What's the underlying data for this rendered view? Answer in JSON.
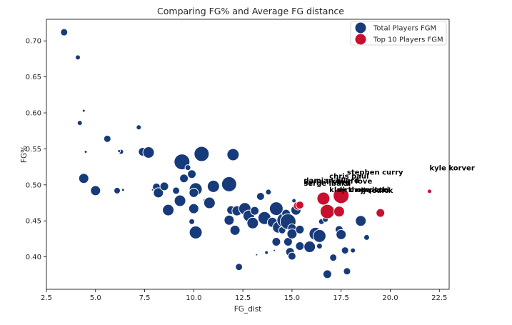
{
  "chart_data": {
    "type": "scatter",
    "title": "Comparing FG% and Average FG distance",
    "xlabel": "FG_dist",
    "ylabel": "FG%",
    "xlim": [
      2.5,
      23.0
    ],
    "ylim": [
      0.355,
      0.73
    ],
    "xticks": [
      2.5,
      5.0,
      7.5,
      10.0,
      12.5,
      15.0,
      17.5,
      20.0,
      22.5
    ],
    "xtick_labels": [
      "2.5",
      "5.0",
      "7.5",
      "10.0",
      "12.5",
      "15.0",
      "17.5",
      "20.0",
      "22.5"
    ],
    "yticks": [
      0.4,
      0.45,
      0.5,
      0.55,
      0.6,
      0.65,
      0.7
    ],
    "ytick_labels": [
      "0.40",
      "0.45",
      "0.50",
      "0.55",
      "0.60",
      "0.65",
      "0.70"
    ],
    "grid": false,
    "legend_position": "top-right",
    "colors": {
      "total": "#173b7a",
      "top": "#c8102e",
      "edge": "#ffffff"
    },
    "series": [
      {
        "name": "Total Players FGM",
        "color": "#173b7a",
        "points": [
          [
            3.4,
            0.712,
            5
          ],
          [
            4.1,
            0.677,
            3.5
          ],
          [
            4.4,
            0.603,
            2
          ],
          [
            4.2,
            0.586,
            3.5
          ],
          [
            4.5,
            0.546,
            2
          ],
          [
            5.6,
            0.564,
            5
          ],
          [
            6.3,
            0.546,
            3.5
          ],
          [
            6.2,
            0.547,
            2
          ],
          [
            7.2,
            0.58,
            3.5
          ],
          [
            7.4,
            0.546,
            6
          ],
          [
            7.7,
            0.545,
            8
          ],
          [
            4.4,
            0.509,
            7
          ],
          [
            5.0,
            0.492,
            7
          ],
          [
            6.1,
            0.492,
            4.5
          ],
          [
            6.4,
            0.493,
            2
          ],
          [
            7.9,
            0.493,
            1.5
          ],
          [
            8.1,
            0.497,
            5.5
          ],
          [
            8.2,
            0.489,
            7
          ],
          [
            8.5,
            0.498,
            6
          ],
          [
            8.7,
            0.465,
            8
          ],
          [
            9.1,
            0.492,
            5
          ],
          [
            9.3,
            0.478,
            8
          ],
          [
            9.4,
            0.532,
            11
          ],
          [
            9.5,
            0.509,
            6
          ],
          [
            9.7,
            0.524,
            4
          ],
          [
            9.9,
            0.515,
            6
          ],
          [
            10.1,
            0.494,
            9
          ],
          [
            10.0,
            0.489,
            6.5
          ],
          [
            10.0,
            0.467,
            7
          ],
          [
            9.9,
            0.449,
            4
          ],
          [
            10.1,
            0.434,
            9
          ],
          [
            10.4,
            0.543,
            10.5
          ],
          [
            10.6,
            0.478,
            3.5
          ],
          [
            10.8,
            0.475,
            8
          ],
          [
            11.0,
            0.498,
            8.5
          ],
          [
            11.8,
            0.501,
            10.5
          ],
          [
            11.9,
            0.465,
            6
          ],
          [
            12.0,
            0.542,
            8.5
          ],
          [
            11.8,
            0.451,
            7
          ],
          [
            12.2,
            0.464,
            7
          ],
          [
            12.1,
            0.437,
            7
          ],
          [
            12.3,
            0.386,
            5
          ],
          [
            12.6,
            0.467,
            8.5
          ],
          [
            12.8,
            0.457,
            8
          ],
          [
            13.0,
            0.447,
            8
          ],
          [
            13.1,
            0.464,
            6
          ],
          [
            13.2,
            0.403,
            1.5
          ],
          [
            13.4,
            0.484,
            5.5
          ],
          [
            13.6,
            0.454,
            9
          ],
          [
            13.7,
            0.406,
            2.5
          ],
          [
            13.8,
            0.49,
            4
          ],
          [
            14.0,
            0.448,
            7
          ],
          [
            14.2,
            0.467,
            9.5
          ],
          [
            14.3,
            0.441,
            8
          ],
          [
            14.2,
            0.421,
            6
          ],
          [
            14.1,
            0.409,
            1.5
          ],
          [
            14.5,
            0.437,
            5
          ],
          [
            14.6,
            0.451,
            10
          ],
          [
            14.7,
            0.46,
            6
          ],
          [
            14.8,
            0.449,
            11
          ],
          [
            14.9,
            0.407,
            6
          ],
          [
            14.8,
            0.421,
            6
          ],
          [
            15.0,
            0.44,
            6
          ],
          [
            15.0,
            0.432,
            7
          ],
          [
            15.0,
            0.401,
            5.5
          ],
          [
            15.1,
            0.478,
            3
          ],
          [
            15.2,
            0.465,
            7
          ],
          [
            15.4,
            0.438,
            6
          ],
          [
            15.4,
            0.415,
            6
          ],
          [
            15.9,
            0.414,
            8
          ],
          [
            16.2,
            0.432,
            9
          ],
          [
            16.4,
            0.429,
            9
          ],
          [
            16.4,
            0.415,
            4
          ],
          [
            16.5,
            0.449,
            4
          ],
          [
            16.7,
            0.452,
            4
          ],
          [
            16.8,
            0.376,
            6
          ],
          [
            17.1,
            0.399,
            5
          ],
          [
            17.4,
            0.438,
            5.5
          ],
          [
            17.5,
            0.431,
            7
          ],
          [
            17.7,
            0.409,
            5
          ],
          [
            17.8,
            0.38,
            5
          ],
          [
            18.1,
            0.409,
            3.5
          ],
          [
            18.5,
            0.45,
            7.5
          ],
          [
            18.8,
            0.427,
            4
          ],
          [
            22.0,
            0.491,
            2
          ]
        ]
      },
      {
        "name": "Top 10 Players FGM",
        "color": "#c8102e",
        "points": [
          [
            15.3,
            0.471,
            6
          ],
          [
            15.4,
            0.472,
            5.5
          ],
          [
            16.6,
            0.481,
            9
          ],
          [
            16.8,
            0.463,
            10
          ],
          [
            17.4,
            0.463,
            7.5
          ],
          [
            17.5,
            0.485,
            11
          ],
          [
            19.5,
            0.461,
            6
          ],
          [
            22.0,
            0.491,
            3
          ]
        ]
      }
    ],
    "annotations": [
      {
        "text": "kyle korver",
        "x": 22.0,
        "y": 0.52
      },
      {
        "text": "stephen curry",
        "x": 17.8,
        "y": 0.514
      },
      {
        "text": "chris paul",
        "x": 16.9,
        "y": 0.509
      },
      {
        "text": "damian lillard",
        "x": 15.6,
        "y": 0.503
      },
      {
        "text": "kyrie irving",
        "x": 15.6,
        "y": 0.501
      },
      {
        "text": "serge ibaka",
        "x": 15.6,
        "y": 0.499
      },
      {
        "text": "kevin love",
        "x": 17.0,
        "y": 0.502
      },
      {
        "text": "klay thompson",
        "x": 16.9,
        "y": 0.49
      },
      {
        "text": "dirk nowitzki",
        "x": 17.3,
        "y": 0.49
      },
      {
        "text": "jj redick",
        "x": 18.5,
        "y": 0.489
      }
    ]
  }
}
